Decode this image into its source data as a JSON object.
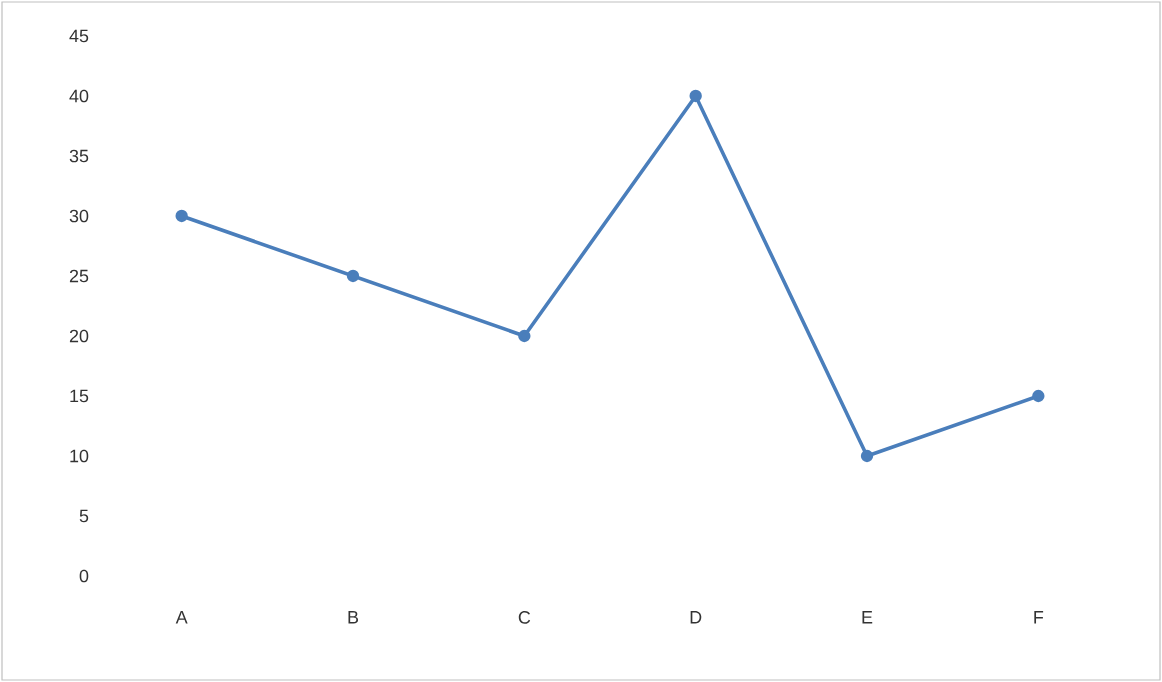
{
  "chart_data": {
    "type": "line",
    "categories": [
      "A",
      "B",
      "C",
      "D",
      "E",
      "F"
    ],
    "series": [
      {
        "color": "#4a7ebb",
        "values": [
          30,
          25,
          20,
          40,
          10,
          15
        ]
      }
    ],
    "ylim": [
      0,
      45
    ],
    "yticks": [
      0,
      5,
      10,
      15,
      20,
      25,
      30,
      35,
      40,
      45
    ],
    "marker": "circle",
    "line_style": "solid"
  }
}
